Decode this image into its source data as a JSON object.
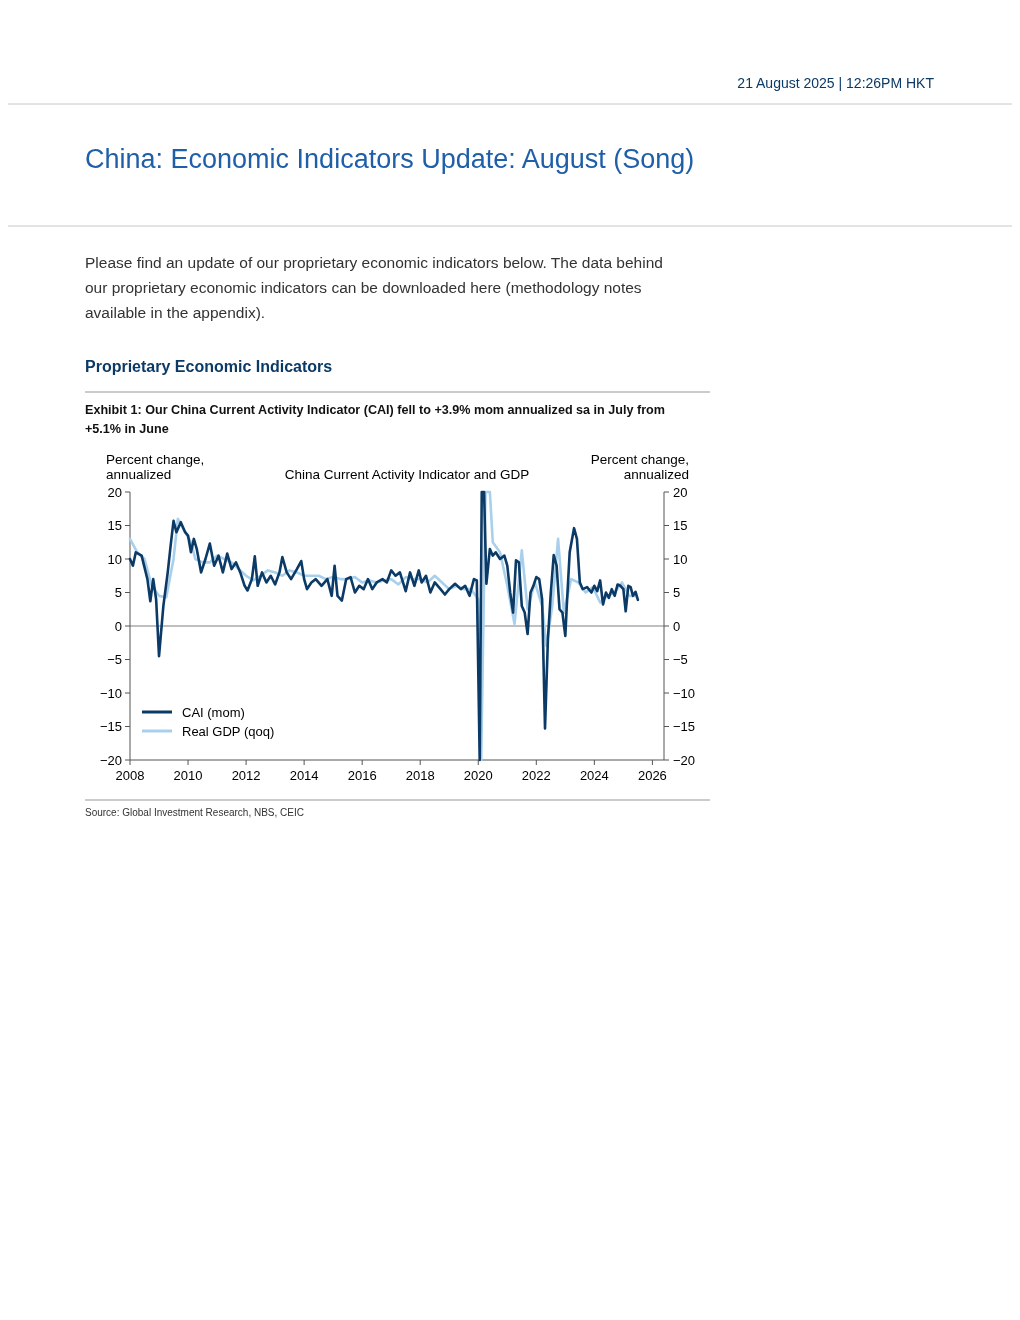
{
  "chart_data": {
    "type": "line",
    "title": "Exhibit 1: Our China Current Activity Indicator (CAI) fell to +3.9% mom annualized sa in July from +5.1% in June",
    "subtitle": "China Current Activity Indicator and GDP",
    "ylabel": "Percent change,\nannualized",
    "y2label": "Percent change,\nannualized",
    "annotations": [
      "21 August 2025 | 12:26PM HKT",
      "China: Economic Indicators Update: August (Song)",
      "Please find an update of our proprietary economic indicators below. The data behind our proprietary economic indicators can be downloaded here (methodology notes available in the appendix).",
      "Proprietary Economic Indicators",
      "Source: Global Investment Research, NBS, CEIC"
    ],
    "xlim": [
      2008,
      2026.4
    ],
    "xticks": [
      2008,
      2010,
      2012,
      2014,
      2016,
      2018,
      2020,
      2022,
      2024,
      2026
    ],
    "ylim": [
      -20,
      20
    ],
    "yticks": [
      -20,
      -15,
      -10,
      -5,
      0,
      5,
      10,
      15,
      20
    ],
    "y2lim": [
      -20,
      20
    ],
    "y2ticks": [
      -20,
      -15,
      -10,
      -5,
      0,
      5,
      10,
      15,
      20
    ],
    "grid": false,
    "legend": "bottom left",
    "marker": "none",
    "line_style": "solid",
    "ref_lines": [
      {
        "axis": "y",
        "value": 0,
        "color": "#808080"
      }
    ],
    "series": [
      {
        "name": "CAI (mom)",
        "color": "#0b3a66",
        "x": [
          2008.0,
          2008.1,
          2008.2,
          2008.4,
          2008.6,
          2008.7,
          2008.8,
          2008.9,
          2009.0,
          2009.15,
          2009.3,
          2009.4,
          2009.5,
          2009.6,
          2009.75,
          2009.9,
          2010.0,
          2010.1,
          2010.2,
          2010.3,
          2010.45,
          2010.6,
          2010.75,
          2010.9,
          2011.05,
          2011.2,
          2011.35,
          2011.5,
          2011.65,
          2011.8,
          2011.95,
          2012.05,
          2012.2,
          2012.3,
          2012.4,
          2012.55,
          2012.7,
          2012.85,
          2013.0,
          2013.15,
          2013.25,
          2013.4,
          2013.55,
          2013.75,
          2013.9,
          2014.0,
          2014.1,
          2014.25,
          2014.4,
          2014.6,
          2014.8,
          2014.95,
          2015.05,
          2015.15,
          2015.3,
          2015.45,
          2015.6,
          2015.75,
          2015.9,
          2016.05,
          2016.2,
          2016.35,
          2016.5,
          2016.7,
          2016.85,
          2017.0,
          2017.15,
          2017.3,
          2017.5,
          2017.65,
          2017.8,
          2017.95,
          2018.05,
          2018.2,
          2018.35,
          2018.5,
          2018.7,
          2018.85,
          2019.0,
          2019.2,
          2019.4,
          2019.55,
          2019.7,
          2019.85,
          2019.95,
          2020.05,
          2020.12,
          2020.2,
          2020.28,
          2020.4,
          2020.5,
          2020.6,
          2020.75,
          2020.9,
          2021.0,
          2021.1,
          2021.2,
          2021.3,
          2021.4,
          2021.5,
          2021.6,
          2021.7,
          2021.8,
          2021.9,
          2022.0,
          2022.1,
          2022.2,
          2022.3,
          2022.4,
          2022.5,
          2022.6,
          2022.7,
          2022.8,
          2022.9,
          2023.0,
          2023.05,
          2023.15,
          2023.3,
          2023.4,
          2023.5,
          2023.6,
          2023.75,
          2023.9,
          2024.0,
          2024.1,
          2024.2,
          2024.3,
          2024.4,
          2024.5,
          2024.6,
          2024.7,
          2024.8,
          2024.9,
          2025.0,
          2025.08,
          2025.17,
          2025.25,
          2025.33,
          2025.42,
          2025.5
        ],
        "values": [
          10,
          9,
          11,
          10.5,
          7,
          3.7,
          7,
          4,
          -4.5,
          3,
          8,
          12,
          15.7,
          14,
          15.5,
          14,
          13.5,
          11,
          13,
          11.5,
          8,
          10,
          12.3,
          9,
          10.5,
          8,
          10.8,
          8.5,
          9.5,
          8,
          6,
          5.3,
          7,
          10.4,
          6,
          8,
          6.5,
          7.5,
          6.2,
          8,
          10.3,
          8,
          7,
          8.5,
          9.7,
          7,
          5.5,
          6.5,
          7,
          6,
          7,
          4.5,
          9,
          4.5,
          3.8,
          7,
          7.3,
          5,
          6,
          5.5,
          7,
          5.5,
          6.5,
          7,
          6.5,
          8.3,
          7.5,
          8,
          5.2,
          8,
          6,
          8.3,
          6.5,
          7.5,
          5,
          6.5,
          5.5,
          4.7,
          5.5,
          6.3,
          5.5,
          6,
          4.5,
          7,
          6.8,
          -20,
          20,
          20,
          6.3,
          11.5,
          10.5,
          11,
          10,
          10.5,
          9,
          5,
          2,
          9.8,
          9.5,
          3,
          2,
          -1.2,
          5,
          6,
          7.3,
          7,
          4,
          -15.3,
          -2,
          5,
          10.6,
          9,
          2.5,
          2,
          -1.5,
          3,
          11,
          14.6,
          13,
          6.5,
          5.5,
          5.8,
          5,
          6,
          5.2,
          6.8,
          3.2,
          5,
          4.2,
          5.5,
          4.5,
          6.2,
          6,
          5.5,
          2.2,
          6,
          5.8,
          4.5,
          5.1,
          3.9
        ]
      },
      {
        "name": "Real GDP (qoq)",
        "color": "#a8d0ec",
        "x": [
          2008.0,
          2008.25,
          2008.5,
          2008.75,
          2009.0,
          2009.25,
          2009.5,
          2009.65,
          2009.9,
          2010.1,
          2010.25,
          2010.5,
          2010.75,
          2011.0,
          2011.25,
          2011.5,
          2011.75,
          2012.0,
          2012.25,
          2012.5,
          2012.75,
          2013.0,
          2013.25,
          2013.5,
          2013.75,
          2014.0,
          2014.25,
          2014.5,
          2014.75,
          2015.0,
          2015.25,
          2015.5,
          2015.75,
          2016.0,
          2016.25,
          2016.5,
          2016.75,
          2017.0,
          2017.25,
          2017.5,
          2017.75,
          2018.0,
          2018.25,
          2018.5,
          2018.75,
          2019.0,
          2019.25,
          2019.5,
          2019.75,
          2020.0,
          2020.1,
          2020.25,
          2020.4,
          2020.5,
          2020.75,
          2021.0,
          2021.25,
          2021.5,
          2021.7,
          2021.95,
          2022.2,
          2022.35,
          2022.55,
          2022.75,
          2022.95,
          2023.2,
          2023.45,
          2023.7,
          2023.95,
          2024.2,
          2024.45,
          2024.7,
          2024.95,
          2025.2,
          2025.45
        ],
        "values": [
          13,
          11,
          10,
          6,
          4.5,
          4.3,
          10,
          16,
          14,
          12.5,
          10,
          9.5,
          9.5,
          10.5,
          10,
          9.5,
          8.5,
          7.5,
          6.8,
          7.5,
          8.3,
          8,
          7.5,
          8.3,
          8,
          7.5,
          7.5,
          7.5,
          7,
          7.3,
          7,
          7,
          7.3,
          6.5,
          6.8,
          6.5,
          6.8,
          7,
          6.2,
          7.3,
          7,
          7,
          6.5,
          7.5,
          6.5,
          5.5,
          6,
          5.5,
          5.5,
          4,
          -20,
          20,
          20,
          12.5,
          11,
          6,
          0.3,
          11.3,
          2.5,
          6.5,
          3,
          -3,
          3,
          13,
          2,
          7,
          6.5,
          5,
          5.8,
          3.5,
          4.5,
          5,
          6.5,
          4.5,
          4.5
        ]
      }
    ]
  }
}
